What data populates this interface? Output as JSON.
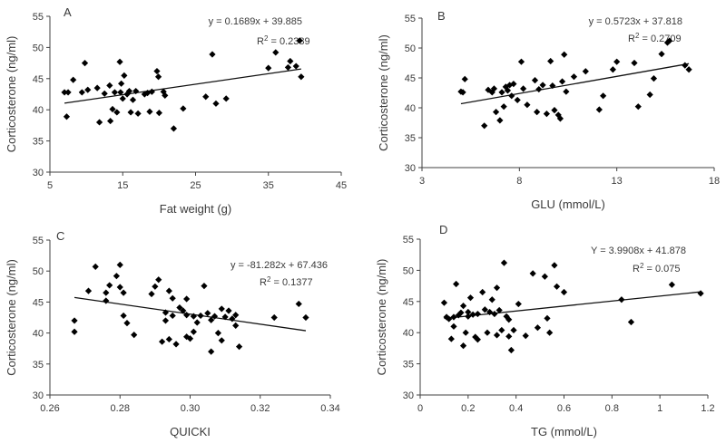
{
  "chart_data": [
    {
      "type": "scatter",
      "panel": "A",
      "xlabel": "Fat weight (g)",
      "ylabel": "Corticosterone (ng/ml)",
      "xlim": [
        5,
        45
      ],
      "ylim": [
        30,
        55
      ],
      "xticks": [
        5,
        15,
        25,
        35,
        45
      ],
      "yticks": [
        30,
        35,
        40,
        45,
        50,
        55
      ],
      "xtick_labels": [
        "5",
        "15",
        "25",
        "35",
        "45"
      ],
      "ytick_labels": [
        "30",
        "35",
        "40",
        "45",
        "50",
        "55"
      ],
      "equation": "y = 0.1689x + 39.885",
      "r2_label": "R",
      "r2_value": " = 0.2389",
      "trend": {
        "slope": 0.1689,
        "intercept": 39.885,
        "x_range": [
          7,
          39.5
        ]
      },
      "points": [
        [
          7.0,
          42.8
        ],
        [
          7.3,
          38.9
        ],
        [
          7.5,
          42.8
        ],
        [
          8.2,
          44.8
        ],
        [
          9.4,
          42.8
        ],
        [
          9.8,
          47.5
        ],
        [
          10.2,
          43.2
        ],
        [
          11.5,
          43.5
        ],
        [
          11.8,
          38.0
        ],
        [
          12.5,
          42.6
        ],
        [
          13.2,
          43.9
        ],
        [
          13.3,
          38.2
        ],
        [
          13.6,
          40.1
        ],
        [
          13.9,
          42.8
        ],
        [
          14.2,
          39.6
        ],
        [
          14.6,
          47.7
        ],
        [
          14.7,
          42.8
        ],
        [
          14.8,
          44.2
        ],
        [
          15.0,
          41.8
        ],
        [
          15.2,
          45.5
        ],
        [
          15.6,
          42.5
        ],
        [
          15.9,
          43.0
        ],
        [
          16.1,
          39.6
        ],
        [
          16.4,
          41.6
        ],
        [
          16.8,
          43.0
        ],
        [
          17.1,
          39.4
        ],
        [
          18.0,
          42.5
        ],
        [
          18.4,
          42.7
        ],
        [
          18.7,
          39.7
        ],
        [
          19.0,
          42.9
        ],
        [
          19.7,
          46.2
        ],
        [
          19.9,
          45.3
        ],
        [
          20.0,
          39.5
        ],
        [
          20.6,
          42.9
        ],
        [
          20.8,
          42.3
        ],
        [
          22.0,
          37.0
        ],
        [
          23.3,
          40.2
        ],
        [
          26.4,
          42.1
        ],
        [
          27.3,
          48.9
        ],
        [
          27.8,
          41.0
        ],
        [
          29.2,
          41.8
        ],
        [
          35.0,
          46.7
        ],
        [
          36.0,
          49.2
        ],
        [
          37.7,
          46.8
        ],
        [
          38.0,
          47.8
        ],
        [
          38.8,
          47.0
        ],
        [
          39.3,
          51.1
        ],
        [
          39.5,
          45.3
        ]
      ]
    },
    {
      "type": "scatter",
      "panel": "B",
      "xlabel": "GLU (mmol/L)",
      "ylabel": "Corticosterone (ng/ml)",
      "xlim": [
        3,
        18
      ],
      "ylim": [
        30,
        55
      ],
      "xticks": [
        3,
        8,
        13,
        18
      ],
      "yticks": [
        30,
        35,
        40,
        45,
        50,
        55
      ],
      "xtick_labels": [
        "3",
        "8",
        "13",
        "18"
      ],
      "ytick_labels": [
        "30",
        "35",
        "40",
        "45",
        "50",
        "55"
      ],
      "equation": "y = 0.5723x + 37.818",
      "r2_label": "R",
      "r2_value": " = 0.2709",
      "trend": {
        "slope": 0.5723,
        "intercept": 37.818,
        "x_range": [
          5,
          16.7
        ]
      },
      "points": [
        [
          5.0,
          42.7
        ],
        [
          5.1,
          42.6
        ],
        [
          5.2,
          44.8
        ],
        [
          6.2,
          37.0
        ],
        [
          6.4,
          43.0
        ],
        [
          6.6,
          42.6
        ],
        [
          6.7,
          43.2
        ],
        [
          6.8,
          39.3
        ],
        [
          7.0,
          37.9
        ],
        [
          7.1,
          42.6
        ],
        [
          7.2,
          40.2
        ],
        [
          7.3,
          43.5
        ],
        [
          7.4,
          42.9
        ],
        [
          7.5,
          43.8
        ],
        [
          7.6,
          42.0
        ],
        [
          7.7,
          44.0
        ],
        [
          7.9,
          41.3
        ],
        [
          8.1,
          47.7
        ],
        [
          8.2,
          43.2
        ],
        [
          8.4,
          40.5
        ],
        [
          8.8,
          44.6
        ],
        [
          8.9,
          39.3
        ],
        [
          9.0,
          43.1
        ],
        [
          9.2,
          43.8
        ],
        [
          9.4,
          39.0
        ],
        [
          9.6,
          47.8
        ],
        [
          9.7,
          43.7
        ],
        [
          9.8,
          39.6
        ],
        [
          10.0,
          38.8
        ],
        [
          10.1,
          38.2
        ],
        [
          10.2,
          44.4
        ],
        [
          10.3,
          48.9
        ],
        [
          10.4,
          42.7
        ],
        [
          10.8,
          45.2
        ],
        [
          11.4,
          46.1
        ],
        [
          12.1,
          39.7
        ],
        [
          12.3,
          42.0
        ],
        [
          12.8,
          46.4
        ],
        [
          13.0,
          47.7
        ],
        [
          13.9,
          47.5
        ],
        [
          14.1,
          40.2
        ],
        [
          14.7,
          42.2
        ],
        [
          14.9,
          44.9
        ],
        [
          15.3,
          49.0
        ],
        [
          15.6,
          50.9
        ],
        [
          15.7,
          51.2
        ],
        [
          16.5,
          47.1
        ],
        [
          16.7,
          46.4
        ]
      ]
    },
    {
      "type": "scatter",
      "panel": "C",
      "xlabel": "QUICKI",
      "ylabel": "Corticosterone (ng/ml)",
      "xlim": [
        0.26,
        0.34
      ],
      "ylim": [
        30,
        55
      ],
      "xticks": [
        0.26,
        0.28,
        0.3,
        0.32,
        0.34
      ],
      "yticks": [
        30,
        35,
        40,
        45,
        50,
        55
      ],
      "xtick_labels": [
        "0.26",
        "0.28",
        "0.30",
        "0.32",
        "0.34"
      ],
      "ytick_labels": [
        "30",
        "35",
        "40",
        "45",
        "50",
        "55"
      ],
      "equation": "y = -81.282x + 67.436",
      "r2_label": "R",
      "r2_value": " = 0.1377",
      "trend": {
        "slope": -81.282,
        "intercept": 67.436,
        "x_range": [
          0.267,
          0.333
        ]
      },
      "points": [
        [
          0.267,
          42.0
        ],
        [
          0.267,
          40.2
        ],
        [
          0.271,
          46.8
        ],
        [
          0.273,
          50.7
        ],
        [
          0.276,
          45.2
        ],
        [
          0.276,
          46.5
        ],
        [
          0.277,
          47.7
        ],
        [
          0.279,
          49.2
        ],
        [
          0.28,
          51.0
        ],
        [
          0.28,
          47.4
        ],
        [
          0.281,
          42.8
        ],
        [
          0.281,
          46.5
        ],
        [
          0.282,
          41.6
        ],
        [
          0.284,
          39.7
        ],
        [
          0.289,
          46.3
        ],
        [
          0.29,
          47.5
        ],
        [
          0.291,
          48.6
        ],
        [
          0.292,
          38.6
        ],
        [
          0.293,
          42.0
        ],
        [
          0.293,
          43.3
        ],
        [
          0.294,
          46.8
        ],
        [
          0.294,
          39.0
        ],
        [
          0.295,
          42.8
        ],
        [
          0.295,
          45.6
        ],
        [
          0.296,
          38.2
        ],
        [
          0.297,
          44.1
        ],
        [
          0.298,
          43.6
        ],
        [
          0.299,
          42.9
        ],
        [
          0.299,
          45.5
        ],
        [
          0.299,
          39.4
        ],
        [
          0.3,
          39.1
        ],
        [
          0.301,
          42.7
        ],
        [
          0.301,
          40.2
        ],
        [
          0.302,
          41.7
        ],
        [
          0.303,
          42.8
        ],
        [
          0.304,
          47.6
        ],
        [
          0.305,
          43.2
        ],
        [
          0.306,
          37.0
        ],
        [
          0.306,
          42.1
        ],
        [
          0.307,
          42.7
        ],
        [
          0.308,
          40.0
        ],
        [
          0.309,
          43.9
        ],
        [
          0.309,
          38.8
        ],
        [
          0.31,
          42.6
        ],
        [
          0.311,
          43.6
        ],
        [
          0.312,
          42.3
        ],
        [
          0.313,
          42.9
        ],
        [
          0.313,
          41.2
        ],
        [
          0.314,
          37.8
        ],
        [
          0.324,
          42.5
        ],
        [
          0.331,
          44.7
        ],
        [
          0.333,
          42.5
        ]
      ]
    },
    {
      "type": "scatter",
      "panel": "D",
      "xlabel": "TG (mmol/L)",
      "ylabel": "Corticosterone (ng/ml)",
      "xlim": [
        0,
        1.2
      ],
      "ylim": [
        30,
        55
      ],
      "xticks": [
        0,
        0.2,
        0.4,
        0.6,
        0.8,
        1.0,
        1.2
      ],
      "yticks": [
        30,
        35,
        40,
        45,
        50,
        55
      ],
      "xtick_labels": [
        "0",
        "0.2",
        "0.4",
        "0.6",
        "0.8",
        "1",
        "1.2"
      ],
      "ytick_labels": [
        "30",
        "35",
        "40",
        "45",
        "50",
        "55"
      ],
      "equation": "Y = 3.9908x + 41.878",
      "r2_label": "R",
      "r2_value": " = 0.075",
      "trend": {
        "slope": 3.9908,
        "intercept": 41.878,
        "x_range": [
          0.1,
          1.17
        ]
      },
      "points": [
        [
          0.1,
          44.8
        ],
        [
          0.11,
          42.5
        ],
        [
          0.12,
          42.2
        ],
        [
          0.13,
          39.0
        ],
        [
          0.14,
          42.5
        ],
        [
          0.14,
          41.0
        ],
        [
          0.15,
          47.8
        ],
        [
          0.16,
          42.8
        ],
        [
          0.17,
          43.2
        ],
        [
          0.18,
          37.9
        ],
        [
          0.18,
          44.3
        ],
        [
          0.19,
          40.0
        ],
        [
          0.2,
          43.3
        ],
        [
          0.2,
          42.6
        ],
        [
          0.21,
          45.6
        ],
        [
          0.22,
          42.9
        ],
        [
          0.23,
          39.3
        ],
        [
          0.24,
          43.0
        ],
        [
          0.24,
          38.9
        ],
        [
          0.26,
          46.5
        ],
        [
          0.27,
          43.7
        ],
        [
          0.28,
          40.0
        ],
        [
          0.29,
          43.3
        ],
        [
          0.3,
          45.3
        ],
        [
          0.31,
          43.0
        ],
        [
          0.32,
          47.2
        ],
        [
          0.32,
          39.6
        ],
        [
          0.33,
          43.6
        ],
        [
          0.34,
          40.4
        ],
        [
          0.35,
          51.2
        ],
        [
          0.36,
          42.6
        ],
        [
          0.37,
          42.1
        ],
        [
          0.37,
          39.4
        ],
        [
          0.38,
          37.2
        ],
        [
          0.39,
          40.4
        ],
        [
          0.41,
          44.6
        ],
        [
          0.44,
          39.5
        ],
        [
          0.47,
          49.5
        ],
        [
          0.49,
          40.8
        ],
        [
          0.52,
          49.0
        ],
        [
          0.53,
          42.3
        ],
        [
          0.54,
          40.0
        ],
        [
          0.56,
          50.8
        ],
        [
          0.57,
          47.4
        ],
        [
          0.6,
          46.5
        ],
        [
          0.84,
          45.3
        ],
        [
          0.88,
          41.7
        ],
        [
          1.05,
          47.7
        ],
        [
          1.17,
          46.3
        ]
      ]
    }
  ]
}
